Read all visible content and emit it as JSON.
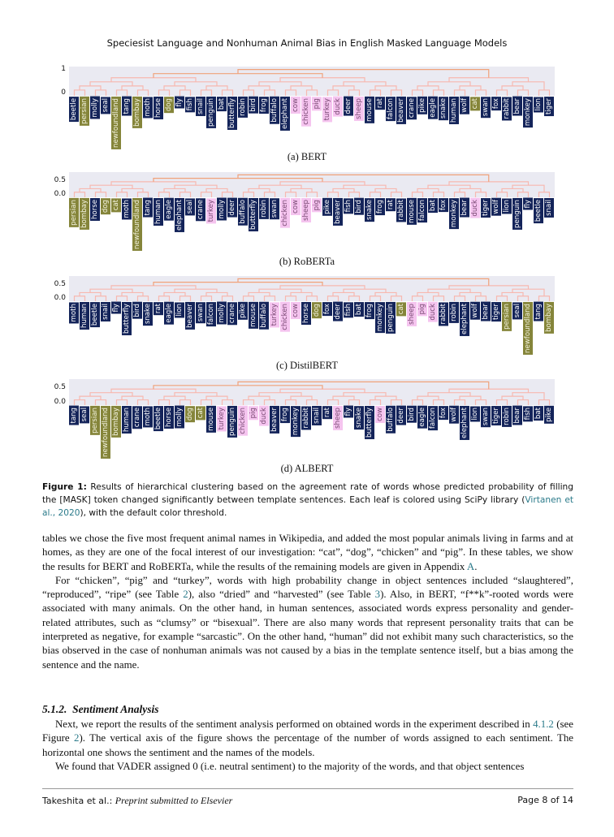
{
  "running_title": "Speciesist Language and Nonhuman Animal Bias in English Masked Language Models",
  "colors": {
    "navy": "#14245a",
    "olive": "#85853a",
    "pink": "#f5c4ef",
    "link_high": "#f0a27a",
    "link_low": "#f7b8b0"
  },
  "charts": [
    {
      "id": "bert",
      "caption": "(a) BERT",
      "yticks": [
        "1",
        "0"
      ],
      "leaves": [
        [
          "beetle",
          "navy"
        ],
        [
          "persian",
          "olive"
        ],
        [
          "molly",
          "navy"
        ],
        [
          "seal",
          "navy"
        ],
        [
          "newfoundland",
          "olive"
        ],
        [
          "tang",
          "navy"
        ],
        [
          "bombay",
          "olive"
        ],
        [
          "moth",
          "navy"
        ],
        [
          "horse",
          "navy"
        ],
        [
          "dog",
          "olive"
        ],
        [
          "fly",
          "navy"
        ],
        [
          "fish",
          "navy"
        ],
        [
          "snail",
          "navy"
        ],
        [
          "penguin",
          "navy"
        ],
        [
          "bat",
          "navy"
        ],
        [
          "butterfly",
          "navy"
        ],
        [
          "robin",
          "navy"
        ],
        [
          "bird",
          "navy"
        ],
        [
          "frog",
          "navy"
        ],
        [
          "buffalo",
          "navy"
        ],
        [
          "elephant",
          "navy"
        ],
        [
          "cow",
          "pink"
        ],
        [
          "chicken",
          "pink"
        ],
        [
          "pig",
          "pink"
        ],
        [
          "turkey",
          "pink"
        ],
        [
          "duck",
          "pink"
        ],
        [
          "deer",
          "navy"
        ],
        [
          "sheep",
          "pink"
        ],
        [
          "mouse",
          "navy"
        ],
        [
          "rat",
          "navy"
        ],
        [
          "falcon",
          "navy"
        ],
        [
          "beaver",
          "navy"
        ],
        [
          "crane",
          "navy"
        ],
        [
          "pike",
          "navy"
        ],
        [
          "eagle",
          "navy"
        ],
        [
          "snake",
          "navy"
        ],
        [
          "human",
          "navy"
        ],
        [
          "wolf",
          "navy"
        ],
        [
          "cat",
          "olive"
        ],
        [
          "swan",
          "navy"
        ],
        [
          "fox",
          "navy"
        ],
        [
          "rabbit",
          "navy"
        ],
        [
          "bear",
          "navy"
        ],
        [
          "monkey",
          "navy"
        ],
        [
          "lion",
          "navy"
        ],
        [
          "tiger",
          "navy"
        ]
      ]
    },
    {
      "id": "roberta",
      "caption": "(b) RoBERTa",
      "yticks": [
        "0.5",
        "0.0"
      ],
      "leaves": [
        [
          "persian",
          "olive"
        ],
        [
          "bombay",
          "olive"
        ],
        [
          "horse",
          "navy"
        ],
        [
          "dog",
          "olive"
        ],
        [
          "cat",
          "olive"
        ],
        [
          "moth",
          "navy"
        ],
        [
          "newfoundland",
          "olive"
        ],
        [
          "tang",
          "navy"
        ],
        [
          "human",
          "navy"
        ],
        [
          "eagle",
          "navy"
        ],
        [
          "elephant",
          "navy"
        ],
        [
          "seal",
          "navy"
        ],
        [
          "crane",
          "navy"
        ],
        [
          "turkey",
          "pink"
        ],
        [
          "molly",
          "navy"
        ],
        [
          "deer",
          "navy"
        ],
        [
          "buffalo",
          "navy"
        ],
        [
          "butterfly",
          "navy"
        ],
        [
          "robin",
          "navy"
        ],
        [
          "swan",
          "navy"
        ],
        [
          "chicken",
          "pink"
        ],
        [
          "cow",
          "pink"
        ],
        [
          "sheep",
          "pink"
        ],
        [
          "pig",
          "pink"
        ],
        [
          "pike",
          "navy"
        ],
        [
          "beaver",
          "navy"
        ],
        [
          "fish",
          "navy"
        ],
        [
          "bird",
          "navy"
        ],
        [
          "snake",
          "navy"
        ],
        [
          "frog",
          "navy"
        ],
        [
          "rat",
          "navy"
        ],
        [
          "rabbit",
          "navy"
        ],
        [
          "mouse",
          "navy"
        ],
        [
          "falcon",
          "navy"
        ],
        [
          "bat",
          "navy"
        ],
        [
          "fox",
          "navy"
        ],
        [
          "monkey",
          "navy"
        ],
        [
          "bear",
          "navy"
        ],
        [
          "duck",
          "pink"
        ],
        [
          "tiger",
          "navy"
        ],
        [
          "wolf",
          "navy"
        ],
        [
          "lion",
          "navy"
        ],
        [
          "penguin",
          "navy"
        ],
        [
          "fly",
          "navy"
        ],
        [
          "beetle",
          "navy"
        ],
        [
          "snail",
          "navy"
        ]
      ]
    },
    {
      "id": "distilbert",
      "caption": "(c) DistilBERT",
      "yticks": [
        "0.5",
        "0.0"
      ],
      "leaves": [
        [
          "moth",
          "navy"
        ],
        [
          "human",
          "navy"
        ],
        [
          "beetle",
          "navy"
        ],
        [
          "snail",
          "navy"
        ],
        [
          "fly",
          "navy"
        ],
        [
          "butterfly",
          "navy"
        ],
        [
          "bird",
          "navy"
        ],
        [
          "snake",
          "navy"
        ],
        [
          "rat",
          "navy"
        ],
        [
          "eagle",
          "navy"
        ],
        [
          "lion",
          "navy"
        ],
        [
          "beaver",
          "navy"
        ],
        [
          "swan",
          "navy"
        ],
        [
          "falcon",
          "navy"
        ],
        [
          "molly",
          "navy"
        ],
        [
          "crane",
          "navy"
        ],
        [
          "pike",
          "navy"
        ],
        [
          "mouse",
          "navy"
        ],
        [
          "buffalo",
          "navy"
        ],
        [
          "turkey",
          "pink"
        ],
        [
          "chicken",
          "pink"
        ],
        [
          "cow",
          "pink"
        ],
        [
          "horse",
          "navy"
        ],
        [
          "dog",
          "olive"
        ],
        [
          "fox",
          "navy"
        ],
        [
          "deer",
          "navy"
        ],
        [
          "fish",
          "navy"
        ],
        [
          "bat",
          "navy"
        ],
        [
          "frog",
          "navy"
        ],
        [
          "monkey",
          "navy"
        ],
        [
          "penguin",
          "navy"
        ],
        [
          "cat",
          "olive"
        ],
        [
          "sheep",
          "pink"
        ],
        [
          "pig",
          "pink"
        ],
        [
          "duck",
          "pink"
        ],
        [
          "rabbit",
          "navy"
        ],
        [
          "robin",
          "navy"
        ],
        [
          "elephant",
          "navy"
        ],
        [
          "wolf",
          "navy"
        ],
        [
          "bear",
          "navy"
        ],
        [
          "tiger",
          "navy"
        ],
        [
          "persian",
          "olive"
        ],
        [
          "seal",
          "navy"
        ],
        [
          "newfoundland",
          "olive"
        ],
        [
          "tang",
          "navy"
        ],
        [
          "bombay",
          "olive"
        ]
      ]
    },
    {
      "id": "albert",
      "caption": "(d) ALBERT",
      "yticks": [
        "0.5",
        "0.0"
      ],
      "leaves": [
        [
          "tang",
          "navy"
        ],
        [
          "seal",
          "navy"
        ],
        [
          "persian",
          "olive"
        ],
        [
          "newfoundland",
          "olive"
        ],
        [
          "bombay",
          "olive"
        ],
        [
          "human",
          "navy"
        ],
        [
          "crane",
          "navy"
        ],
        [
          "moth",
          "navy"
        ],
        [
          "beetle",
          "navy"
        ],
        [
          "horse",
          "navy"
        ],
        [
          "molly",
          "navy"
        ],
        [
          "dog",
          "olive"
        ],
        [
          "cat",
          "olive"
        ],
        [
          "mouse",
          "navy"
        ],
        [
          "turkey",
          "pink"
        ],
        [
          "penguin",
          "navy"
        ],
        [
          "chicken",
          "pink"
        ],
        [
          "pig",
          "pink"
        ],
        [
          "duck",
          "pink"
        ],
        [
          "beaver",
          "navy"
        ],
        [
          "frog",
          "navy"
        ],
        [
          "monkey",
          "navy"
        ],
        [
          "rabbit",
          "navy"
        ],
        [
          "snail",
          "navy"
        ],
        [
          "rat",
          "navy"
        ],
        [
          "sheep",
          "pink"
        ],
        [
          "fly",
          "navy"
        ],
        [
          "snake",
          "navy"
        ],
        [
          "butterfly",
          "navy"
        ],
        [
          "cow",
          "pink"
        ],
        [
          "buffalo",
          "navy"
        ],
        [
          "deer",
          "navy"
        ],
        [
          "bird",
          "navy"
        ],
        [
          "eagle",
          "navy"
        ],
        [
          "falcon",
          "navy"
        ],
        [
          "fox",
          "navy"
        ],
        [
          "wolf",
          "navy"
        ],
        [
          "elephant",
          "navy"
        ],
        [
          "lion",
          "navy"
        ],
        [
          "swan",
          "navy"
        ],
        [
          "tiger",
          "navy"
        ],
        [
          "robin",
          "navy"
        ],
        [
          "bear",
          "navy"
        ],
        [
          "fish",
          "navy"
        ],
        [
          "bat",
          "navy"
        ],
        [
          "pike",
          "navy"
        ]
      ]
    }
  ],
  "figure_caption": {
    "label": "Figure 1:",
    "text1": " Results of hierarchical clustering based on the agreement rate of words whose predicted probability of filling the [MASK] token changed significantly between template sentences. Each leaf is colored using SciPy library (",
    "cite": "Virtanen et al., 2020",
    "text2": "), with the default color threshold."
  },
  "para1": {
    "a": "tables we chose the five most frequent animal names in Wikipedia, and added the most popular animals living in farms and at homes, as they are one of the focal interest of our investigation: “cat”, “dog”, “chicken” and “pig”. In these tables, we show the results for BERT and RoBERTa, while the results of the remaining models are given in Appendix ",
    "ref": "A",
    "b": "."
  },
  "para2": {
    "a": "For “chicken”, “pig” and “turkey”, words with high probability change in object sentences included “slaughtered”, “reproduced”, “ripe” (see Table ",
    "ref1": "2",
    "b": "), also “dried” and “harvested” (see Table ",
    "ref2": "3",
    "c": "). Also, in BERT, “f**k”-rooted words were associated with many animals. On the other hand, in human sentences, associated words express personality and gender-related attributes, such as “clumsy” or “bisexual”. There are also many words that represent personality traits that can be interpreted as negative, for example “sarcastic”. On the other hand, “human” did not exhibit many such characteristics, so the bias observed in the case of nonhuman animals was not caused by a bias in the template sentence itself, but a bias among the sentence and the name."
  },
  "section": {
    "number": "5.1.2.",
    "title": "Sentiment Analysis"
  },
  "para3": {
    "a": "Next, we report the results of the sentiment analysis performed on obtained words in the experiment described in ",
    "ref1": "4.1.2",
    "b": " (see Figure ",
    "ref2": "2",
    "c": "). The vertical axis of the figure shows the percentage of the number of words assigned to each sentiment. The horizontal one shows the sentiment and the names of the models."
  },
  "para4": "We found that VADER assigned 0 (i.e. neutral sentiment) to the majority of the words, and that object sentences",
  "footer": {
    "authors": "Takeshita et al.:",
    "venue": "Preprint submitted to Elsevier",
    "page": "Page 8 of 14"
  }
}
